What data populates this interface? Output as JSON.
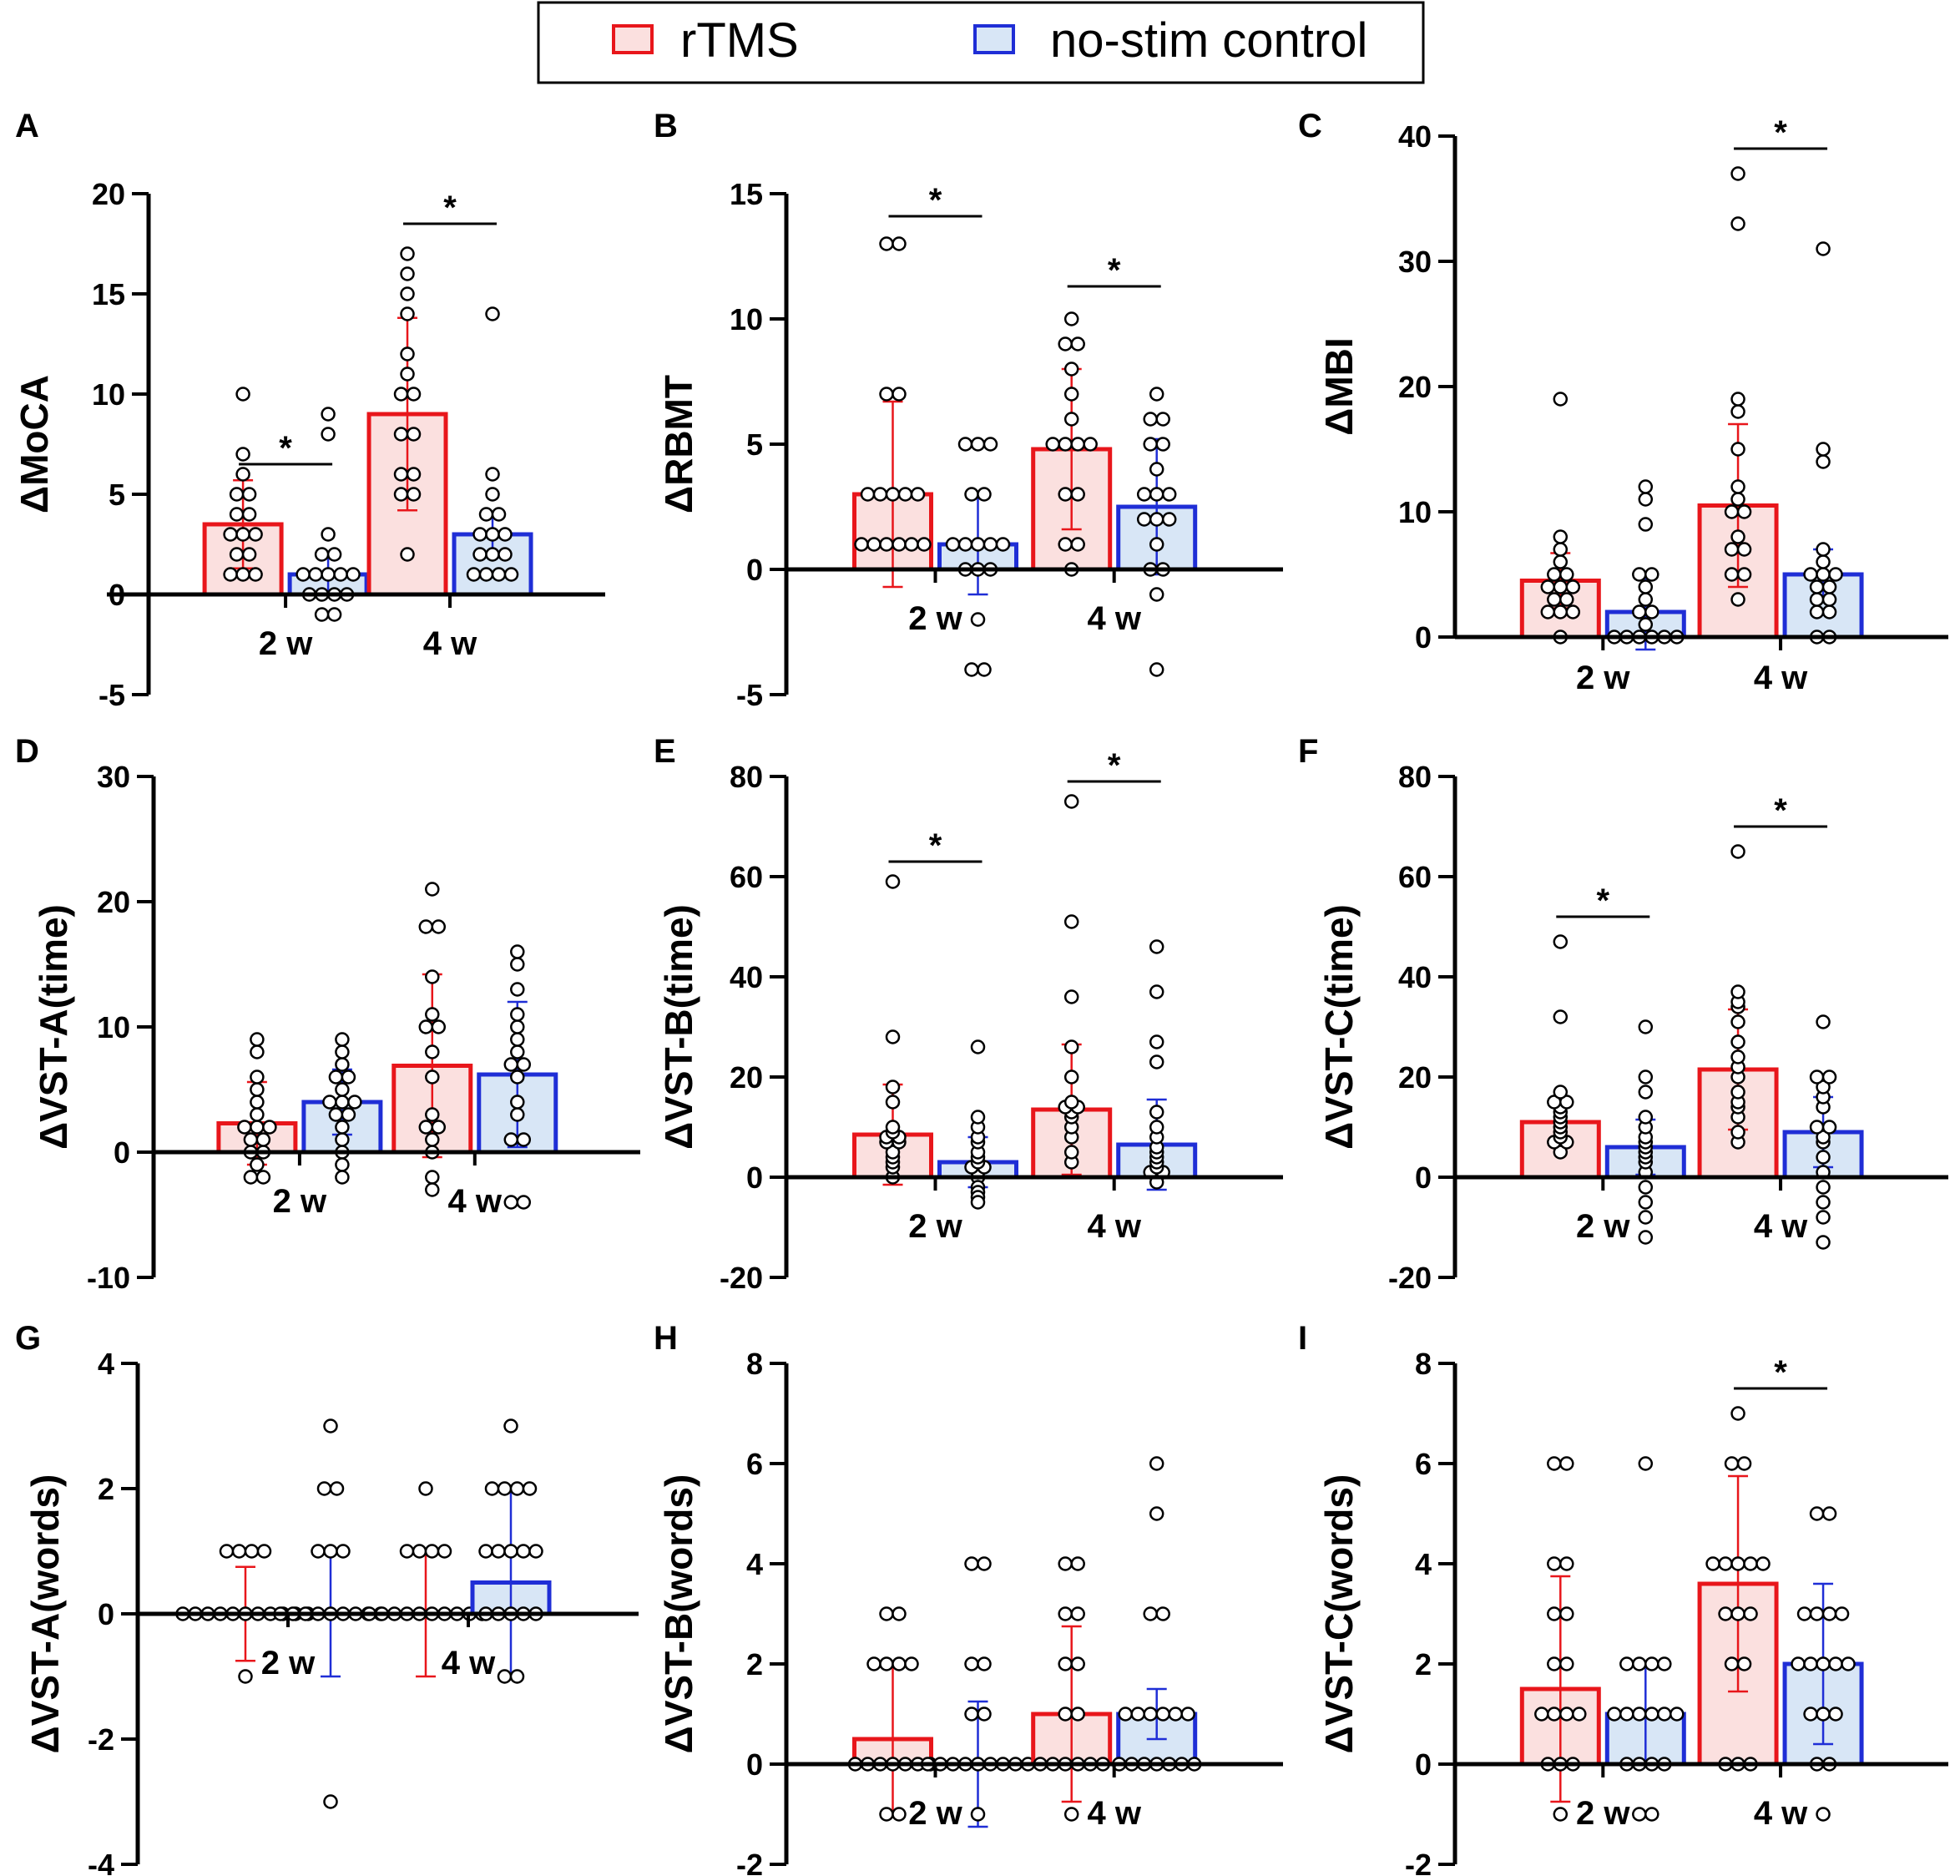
{
  "legend": {
    "items": [
      {
        "label": "rTMS",
        "stroke": "#e8161b",
        "fill": "#fbe0df"
      },
      {
        "label": "no-stim control",
        "stroke": "#1f2ed6",
        "fill": "#d8e6f6"
      }
    ]
  },
  "colors": {
    "rtms_stroke": "#e8161b",
    "rtms_fill": "#fbe0df",
    "ctrl_stroke": "#1f2ed6",
    "ctrl_fill": "#d8e6f6",
    "axis": "#000000"
  },
  "chart_data": [
    {
      "panel": "A",
      "type": "bar",
      "ylabel": "ΔMoCA",
      "ylim": [
        -5,
        20
      ],
      "yticks": [
        -5,
        0,
        5,
        10,
        15,
        20
      ],
      "yticklabels": [
        "-5",
        "0",
        "5",
        "10",
        "15",
        "20"
      ],
      "categories": [
        "2 w",
        "4 w"
      ],
      "series": [
        {
          "name": "rTMS",
          "values": [
            3.5,
            9.0
          ],
          "errors": [
            2.2,
            4.8
          ]
        },
        {
          "name": "no-stim control",
          "values": [
            1.0,
            3.0
          ],
          "errors": [
            1.0,
            1.0
          ]
        }
      ],
      "points": [
        [
          [
            10,
            7,
            6,
            5,
            5,
            4,
            4,
            3,
            3,
            3,
            2,
            2,
            1,
            1,
            1
          ],
          [
            9,
            8,
            3,
            2,
            2,
            1,
            1,
            1,
            1,
            1,
            0,
            0,
            0,
            0,
            -1,
            -1
          ]
        ],
        [
          [
            17,
            16,
            15,
            14,
            12,
            11,
            10,
            10,
            8,
            8,
            6,
            6,
            5,
            5,
            2
          ],
          [
            14,
            6,
            5,
            4,
            4,
            3,
            3,
            3,
            2,
            2,
            2,
            1,
            1,
            1,
            1
          ]
        ]
      ],
      "significance": [
        {
          "category": "2 w",
          "level": 6.5,
          "label": "*"
        },
        {
          "category": "4 w",
          "level": 18.5,
          "label": "*"
        }
      ]
    },
    {
      "panel": "B",
      "type": "bar",
      "ylabel": "ΔRBMT",
      "ylim": [
        -5,
        15
      ],
      "yticks": [
        -5,
        0,
        5,
        10,
        15
      ],
      "yticklabels": [
        "-5",
        "0",
        "5",
        "10",
        "15"
      ],
      "categories": [
        "2 w",
        "4 w"
      ],
      "series": [
        {
          "name": "rTMS",
          "values": [
            3.0,
            4.8
          ],
          "errors": [
            3.7,
            3.2
          ]
        },
        {
          "name": "no-stim control",
          "values": [
            1.0,
            2.5
          ],
          "errors": [
            2.0,
            2.7
          ]
        }
      ],
      "points": [
        [
          [
            13,
            13,
            7,
            7,
            3,
            3,
            3,
            3,
            3,
            1,
            1,
            1,
            1,
            1,
            1
          ],
          [
            5,
            5,
            5,
            3,
            3,
            1,
            1,
            1,
            1,
            1,
            0,
            0,
            0,
            -2,
            -4,
            -4
          ]
        ],
        [
          [
            10,
            9,
            9,
            8,
            7,
            6,
            5,
            5,
            5,
            5,
            3,
            3,
            1,
            1,
            0
          ],
          [
            7,
            6,
            6,
            5,
            5,
            4,
            3,
            3,
            3,
            2,
            2,
            2,
            1,
            0,
            0,
            -1,
            -4
          ]
        ]
      ],
      "significance": [
        {
          "category": "2 w",
          "level": 14.1,
          "label": "*"
        },
        {
          "category": "4 w",
          "level": 11.3,
          "label": "*"
        }
      ]
    },
    {
      "panel": "C",
      "type": "bar",
      "ylabel": "ΔMBI",
      "ylim": [
        0,
        40
      ],
      "yticks": [
        0,
        10,
        20,
        30,
        40
      ],
      "yticklabels": [
        "0",
        "10",
        "20",
        "30",
        "40"
      ],
      "categories": [
        "2 w",
        "4 w"
      ],
      "series": [
        {
          "name": "rTMS",
          "values": [
            4.5,
            10.5
          ],
          "errors": [
            2.2,
            6.5
          ]
        },
        {
          "name": "no-stim control",
          "values": [
            2.0,
            5.0
          ],
          "errors": [
            3.0,
            2.0
          ]
        }
      ],
      "points": [
        [
          [
            19,
            8,
            7,
            6,
            5,
            5,
            4,
            4,
            4,
            3,
            3,
            2,
            2,
            2,
            0
          ],
          [
            12,
            11,
            9,
            5,
            5,
            4,
            3,
            2,
            2,
            1,
            0,
            0,
            0,
            0,
            0,
            0
          ]
        ],
        [
          [
            37,
            33,
            19,
            18,
            15,
            12,
            11,
            10,
            10,
            8,
            7,
            7,
            5,
            5,
            3
          ],
          [
            31,
            15,
            14,
            7,
            6,
            5,
            5,
            5,
            4,
            4,
            3,
            3,
            2,
            2,
            0,
            0
          ]
        ]
      ],
      "significance": [
        {
          "category": "4 w",
          "level": 39,
          "label": "*"
        }
      ]
    },
    {
      "panel": "D",
      "type": "bar",
      "ylabel": "ΔVST-A(time)",
      "ylim": [
        -10,
        30
      ],
      "yticks": [
        -10,
        0,
        10,
        20,
        30
      ],
      "yticklabels": [
        "-10",
        "0",
        "10",
        "20",
        "30"
      ],
      "categories": [
        "2 w",
        "4 w"
      ],
      "series": [
        {
          "name": "rTMS",
          "values": [
            2.3,
            6.9
          ],
          "errors": [
            3.3,
            7.3
          ]
        },
        {
          "name": "no-stim control",
          "values": [
            4.0,
            6.2
          ],
          "errors": [
            2.6,
            5.8
          ]
        }
      ],
      "points": [
        [
          [
            9,
            8,
            6,
            5,
            4,
            3,
            2,
            2,
            2,
            1,
            1,
            0,
            0,
            -1,
            -2,
            -2
          ],
          [
            9,
            8,
            7,
            6,
            6,
            5,
            4,
            4,
            4,
            3,
            3,
            2,
            1,
            0,
            -1,
            -2
          ]
        ],
        [
          [
            21,
            18,
            18,
            14,
            11,
            10,
            10,
            8,
            6,
            3,
            2,
            2,
            1,
            0,
            -2,
            -3
          ],
          [
            16,
            15,
            13,
            11,
            10,
            9,
            8,
            7,
            7,
            6,
            4,
            3,
            1,
            1,
            -4,
            -4
          ]
        ]
      ],
      "significance": []
    },
    {
      "panel": "E",
      "type": "bar",
      "ylabel": "ΔVST-B(time)",
      "ylim": [
        -20,
        80
      ],
      "yticks": [
        -20,
        0,
        20,
        40,
        60,
        80
      ],
      "yticklabels": [
        "-20",
        "0",
        "20",
        "40",
        "60",
        "80"
      ],
      "categories": [
        "2 w",
        "4 w"
      ],
      "series": [
        {
          "name": "rTMS",
          "values": [
            8.5,
            13.5
          ],
          "errors": [
            10.0,
            13.0
          ]
        },
        {
          "name": "no-stim control",
          "values": [
            3.0,
            6.5
          ],
          "errors": [
            5.0,
            9.0
          ]
        }
      ],
      "points": [
        [
          [
            59,
            28,
            18,
            15,
            10,
            9,
            8,
            8,
            7,
            7,
            5,
            4,
            3,
            2,
            0
          ],
          [
            26,
            12,
            10,
            8,
            7,
            5,
            4,
            3,
            2,
            2,
            1,
            0,
            -2,
            -3,
            -4,
            -5
          ]
        ],
        [
          [
            75,
            51,
            36,
            26,
            20,
            15,
            14,
            14,
            13,
            12,
            10,
            8,
            5,
            3
          ],
          [
            46,
            37,
            27,
            23,
            13,
            10,
            8,
            6,
            5,
            4,
            3,
            2,
            1,
            1,
            0,
            -1
          ]
        ]
      ],
      "significance": [
        {
          "category": "2 w",
          "level": 63,
          "label": "*"
        },
        {
          "category": "4 w",
          "level": 79,
          "label": "*"
        }
      ]
    },
    {
      "panel": "F",
      "type": "bar",
      "ylabel": "ΔVST-C(time)",
      "ylim": [
        -20,
        80
      ],
      "yticks": [
        -20,
        0,
        20,
        40,
        60,
        80
      ],
      "yticklabels": [
        "-20",
        "0",
        "20",
        "40",
        "60",
        "80"
      ],
      "categories": [
        "2 w",
        "4 w"
      ],
      "series": [
        {
          "name": "rTMS",
          "values": [
            11.0,
            21.5
          ],
          "errors": [
            4.0,
            12.0
          ]
        },
        {
          "name": "no-stim control",
          "values": [
            6.0,
            9.0
          ],
          "errors": [
            5.5,
            7.0
          ]
        }
      ],
      "points": [
        [
          [
            47,
            32,
            17,
            15,
            15,
            14,
            13,
            12,
            11,
            10,
            9,
            8,
            7,
            7,
            5
          ],
          [
            30,
            20,
            17,
            12,
            10,
            8,
            7,
            6,
            5,
            4,
            3,
            1,
            -2,
            -5,
            -8,
            -12
          ]
        ],
        [
          [
            65,
            37,
            35,
            34,
            31,
            27,
            24,
            22,
            20,
            17,
            15,
            14,
            12,
            9,
            7
          ],
          [
            31,
            20,
            20,
            18,
            16,
            14,
            10,
            10,
            8,
            7,
            4,
            1,
            -2,
            -5,
            -8,
            -13
          ]
        ]
      ],
      "significance": [
        {
          "category": "2 w",
          "level": 52,
          "label": "*"
        },
        {
          "category": "4 w",
          "level": 70,
          "label": "*"
        }
      ]
    },
    {
      "panel": "G",
      "type": "bar",
      "ylabel": "ΔVST-A(words)",
      "ylim": [
        -4,
        4
      ],
      "yticks": [
        -4,
        -2,
        0,
        2,
        4
      ],
      "yticklabels": [
        "-4",
        "-2",
        "0",
        "2",
        "4"
      ],
      "categories": [
        "2 w",
        "4 w"
      ],
      "series": [
        {
          "name": "rTMS",
          "values": [
            0.0,
            0.0
          ],
          "errors": [
            0.75,
            1.0
          ]
        },
        {
          "name": "no-stim control",
          "values": [
            0.0,
            0.5
          ],
          "errors": [
            1.0,
            1.5
          ]
        }
      ],
      "points": [
        [
          [
            1,
            1,
            1,
            1,
            0,
            0,
            0,
            0,
            0,
            0,
            0,
            0,
            0,
            0,
            0,
            -1
          ],
          [
            3,
            2,
            2,
            1,
            1,
            1,
            0,
            0,
            0,
            0,
            0,
            0,
            0,
            0,
            0,
            -3
          ]
        ],
        [
          [
            2,
            1,
            1,
            1,
            1,
            0,
            0,
            0,
            0,
            0,
            0,
            0,
            0,
            0,
            0
          ],
          [
            3,
            2,
            2,
            2,
            2,
            1,
            1,
            1,
            1,
            1,
            0,
            0,
            0,
            0,
            0,
            -1,
            -1
          ]
        ]
      ],
      "significance": []
    },
    {
      "panel": "H",
      "type": "bar",
      "ylabel": "ΔVST-B(words)",
      "ylim": [
        -2,
        8
      ],
      "yticks": [
        -2,
        0,
        2,
        4,
        6,
        8
      ],
      "yticklabels": [
        "-2",
        "0",
        "2",
        "4",
        "6",
        "8"
      ],
      "categories": [
        "2 w",
        "4 w"
      ],
      "series": [
        {
          "name": "rTMS",
          "values": [
            0.5,
            1.0
          ],
          "errors": [
            1.5,
            1.75
          ]
        },
        {
          "name": "no-stim control",
          "values": [
            0.0,
            1.0
          ],
          "errors": [
            1.25,
            0.5
          ]
        }
      ],
      "points": [
        [
          [
            3,
            3,
            2,
            2,
            2,
            2,
            0,
            0,
            0,
            0,
            0,
            0,
            0,
            -1,
            -1
          ],
          [
            4,
            4,
            2,
            2,
            1,
            1,
            0,
            0,
            0,
            0,
            0,
            0,
            0,
            0,
            0,
            -1
          ]
        ],
        [
          [
            4,
            4,
            3,
            3,
            2,
            2,
            1,
            1,
            0,
            0,
            0,
            0,
            0,
            0,
            -1
          ],
          [
            6,
            5,
            3,
            3,
            1,
            1,
            1,
            1,
            1,
            1,
            0,
            0,
            0,
            0,
            0,
            0,
            0
          ]
        ]
      ],
      "significance": []
    },
    {
      "panel": "I",
      "type": "bar",
      "ylabel": "ΔVST-C(words)",
      "ylim": [
        -2,
        8
      ],
      "yticks": [
        -2,
        0,
        2,
        4,
        6,
        8
      ],
      "yticklabels": [
        "-2",
        "0",
        "2",
        "4",
        "6",
        "8"
      ],
      "categories": [
        "2 w",
        "4 w"
      ],
      "series": [
        {
          "name": "rTMS",
          "values": [
            1.5,
            3.6
          ],
          "errors": [
            2.25,
            2.15
          ]
        },
        {
          "name": "no-stim control",
          "values": [
            1.0,
            2.0
          ],
          "errors": [
            1.0,
            1.6
          ]
        }
      ],
      "points": [
        [
          [
            6,
            6,
            4,
            4,
            3,
            3,
            2,
            2,
            1,
            1,
            1,
            1,
            0,
            0,
            0,
            -1
          ],
          [
            6,
            2,
            2,
            2,
            2,
            1,
            1,
            1,
            1,
            1,
            1,
            0,
            0,
            0,
            0,
            -1,
            -1
          ]
        ],
        [
          [
            7,
            6,
            6,
            4,
            4,
            4,
            4,
            4,
            3,
            3,
            3,
            2,
            2,
            0,
            0,
            0
          ],
          [
            5,
            5,
            3,
            3,
            3,
            3,
            2,
            2,
            2,
            2,
            2,
            1,
            1,
            1,
            0,
            0,
            -1
          ]
        ]
      ],
      "significance": [
        {
          "category": "4 w",
          "level": 7.5,
          "label": "*"
        }
      ]
    }
  ]
}
